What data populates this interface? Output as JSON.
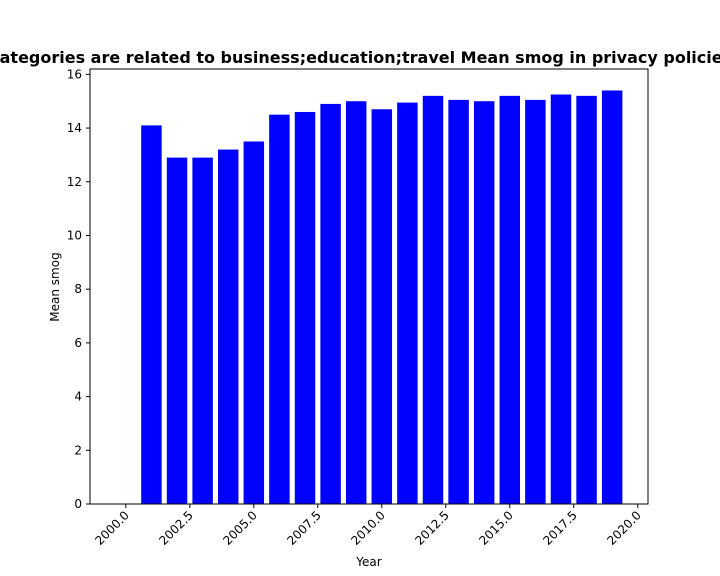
{
  "chart_data": {
    "type": "bar",
    "title": "Categories are related to business;education;travel Mean smog in privacy policies",
    "xlabel": "Year",
    "ylabel": "Mean smog",
    "x": [
      2001,
      2002,
      2003,
      2004,
      2005,
      2006,
      2007,
      2008,
      2009,
      2010,
      2011,
      2012,
      2013,
      2014,
      2015,
      2016,
      2017,
      2018,
      2019
    ],
    "values": [
      14.1,
      12.9,
      12.9,
      13.2,
      13.5,
      14.5,
      14.6,
      14.9,
      15.0,
      14.7,
      14.95,
      15.2,
      15.05,
      15.0,
      15.2,
      15.05,
      15.25,
      15.2,
      15.4
    ],
    "xlim": [
      1998.6,
      2020.4
    ],
    "ylim": [
      0,
      16.2
    ],
    "xticks": [
      2000.0,
      2002.5,
      2005.0,
      2007.5,
      2010.0,
      2012.5,
      2015.0,
      2017.5,
      2020.0
    ],
    "xtick_labels": [
      "2000.0",
      "2002.5",
      "2005.0",
      "2007.5",
      "2010.0",
      "2012.5",
      "2015.0",
      "2017.5",
      "2020.0"
    ],
    "yticks": [
      0,
      2,
      4,
      6,
      8,
      10,
      12,
      14,
      16
    ],
    "ytick_labels": [
      "0",
      "2",
      "4",
      "6",
      "8",
      "10",
      "12",
      "14",
      "16"
    ],
    "bar_color": "#0000ff",
    "grid": false,
    "legend": "none"
  }
}
